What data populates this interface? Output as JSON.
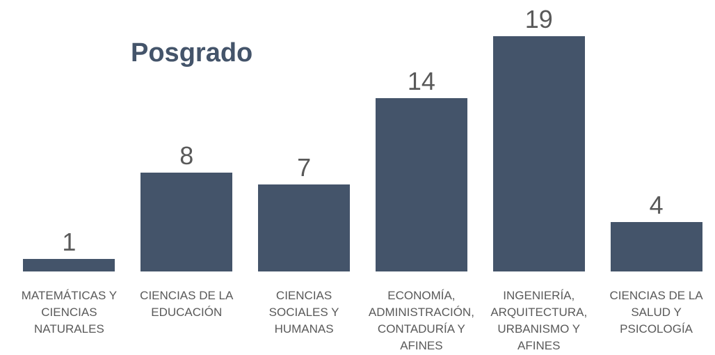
{
  "chart_data": {
    "type": "bar",
    "title": "Posgrado",
    "categories": [
      "MATEMÁTICAS Y CIENCIAS NATURALES",
      "CIENCIAS DE LA EDUCACIÓN",
      "CIENCIAS SOCIALES Y HUMANAS",
      "ECONOMÍA, ADMINISTRACIÓN, CONTADURÍA Y AFINES",
      "INGENIERÍA, ARQUITECTURA, URBANISMO Y AFINES",
      "CIENCIAS DE LA SALUD Y PSICOLOGÍA"
    ],
    "values": [
      1,
      8,
      7,
      14,
      19,
      4
    ],
    "color": "#44546a"
  }
}
